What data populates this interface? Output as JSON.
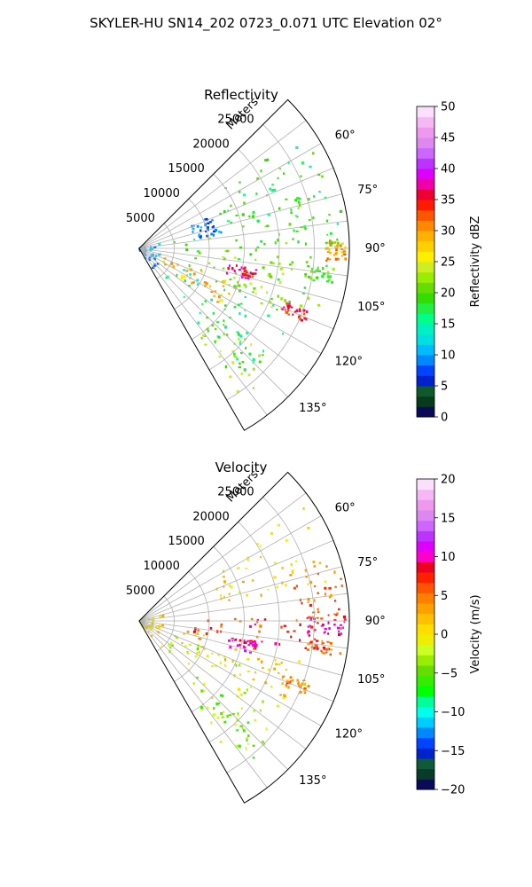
{
  "figure": {
    "suptitle": "SKYLER-HU  SN14_202  0723_0.071 UTC Elevation 02°"
  },
  "palettes": {
    "reflectivity": [
      "#0a0a5a",
      "#073b1a",
      "#0f5a2a",
      "#0022cc",
      "#0044ff",
      "#0088ff",
      "#00bbff",
      "#00e0e0",
      "#00f0c0",
      "#00ff88",
      "#22ee44",
      "#33dd00",
      "#66dd00",
      "#99ee00",
      "#ccee22",
      "#ffee00",
      "#ffd000",
      "#ffb000",
      "#ff8800",
      "#ff5500",
      "#ff1a00",
      "#ee0033",
      "#ee00aa",
      "#dd00ff",
      "#bb33ff",
      "#cc66ff",
      "#dd88ee",
      "#ee99ee",
      "#f4b8f4",
      "#fbe0fb"
    ],
    "velocity": [
      "#0a0a5a",
      "#0a3a2a",
      "#0f5a3a",
      "#0022cc",
      "#0044ff",
      "#0088ff",
      "#00ccff",
      "#00ffee",
      "#00ff99",
      "#00ff00",
      "#33ee00",
      "#66dd00",
      "#99ee00",
      "#ccff22",
      "#eeee00",
      "#ffdd00",
      "#ffc000",
      "#ffa000",
      "#ff8000",
      "#ff5500",
      "#ff2000",
      "#ee0022",
      "#ff00cc",
      "#dd00ff",
      "#bb33ff",
      "#cc66ff",
      "#dd88ee",
      "#ee99ee",
      "#f4b8f4",
      "#fbe0fb"
    ]
  },
  "chart_data": [
    {
      "type": "polar-sector",
      "title": "Reflectivity",
      "r_label": "Meters",
      "r_ticks": [
        5000,
        10000,
        15000,
        20000,
        25000
      ],
      "r_tick_labels": [
        "5000",
        "10000",
        "15000",
        "20000",
        "25000"
      ],
      "rlim": [
        0,
        30000
      ],
      "azimuth_range_deg": [
        45,
        150
      ],
      "azimuth_grid_deg": [
        45,
        52.5,
        60,
        67.5,
        75,
        82.5,
        90,
        97.5,
        105,
        112.5,
        120,
        127.5,
        135,
        142.5,
        150
      ],
      "azimuth_tick_labels": [
        "60°",
        "75°",
        "90°",
        "105°",
        "120°",
        "135°"
      ],
      "colorbar": {
        "label": "Reflectivity dBZ",
        "range": [
          0,
          50
        ],
        "ticks": [
          0,
          5,
          10,
          15,
          20,
          25,
          30,
          35,
          40,
          45,
          50
        ],
        "tick_labels": [
          "0",
          "5",
          "10",
          "15",
          "20",
          "25",
          "30",
          "35",
          "40",
          "45",
          "50"
        ],
        "palette": "reflectivity"
      },
      "echo_regions": [
        {
          "az": [
            80,
            112
          ],
          "r": [
            5000,
            27000
          ],
          "value": 20
        },
        {
          "az": [
            95,
            115
          ],
          "r": [
            12000,
            22000
          ],
          "value": 22
        },
        {
          "az": [
            112,
            142
          ],
          "r": [
            4000,
            24000
          ],
          "value": 17
        },
        {
          "az": [
            130,
            146
          ],
          "r": [
            15000,
            26000
          ],
          "value": 22
        },
        {
          "az": [
            72,
            90
          ],
          "r": [
            22000,
            29500
          ],
          "value": 18
        },
        {
          "az": [
            88,
            94
          ],
          "r": [
            26500,
            29500
          ],
          "value": 30
        },
        {
          "az": [
            96,
            100
          ],
          "r": [
            24000,
            28000
          ],
          "value": 20
        },
        {
          "az": [
            110,
            114
          ],
          "r": [
            22000,
            26000
          ],
          "value": 35
        },
        {
          "az": [
            110,
            125
          ],
          "r": [
            3000,
            15000
          ],
          "value": 28
        },
        {
          "az": [
            55,
            80
          ],
          "r": [
            12000,
            28500
          ],
          "value": 18
        },
        {
          "az": [
            75,
            150
          ],
          "r": [
            0,
            3500
          ],
          "value": 10
        },
        {
          "az": [
            66,
            80
          ],
          "r": [
            8000,
            12000
          ],
          "value": 8
        },
        {
          "az": [
            100,
            106
          ],
          "r": [
            13000,
            17000
          ],
          "value": 36
        }
      ]
    },
    {
      "type": "polar-sector",
      "title": "Velocity",
      "r_label": "Meters",
      "r_ticks": [
        5000,
        10000,
        15000,
        20000,
        25000
      ],
      "r_tick_labels": [
        "5000",
        "10000",
        "15000",
        "20000",
        "25000"
      ],
      "rlim": [
        0,
        30000
      ],
      "azimuth_range_deg": [
        45,
        150
      ],
      "azimuth_grid_deg": [
        45,
        52.5,
        60,
        67.5,
        75,
        82.5,
        90,
        97.5,
        105,
        112.5,
        120,
        127.5,
        135,
        142.5,
        150
      ],
      "azimuth_tick_labels": [
        "60°",
        "75°",
        "90°",
        "105°",
        "120°",
        "135°"
      ],
      "colorbar": {
        "label": "Velocity (m/s)",
        "range": [
          -20,
          20
        ],
        "ticks": [
          -20,
          -15,
          -10,
          -5,
          0,
          5,
          10,
          15,
          20
        ],
        "tick_labels": [
          "−20",
          "−15",
          "−10",
          "−5",
          "0",
          "5",
          "10",
          "15",
          "20"
        ],
        "palette": "velocity"
      },
      "echo_regions": [
        {
          "az": [
            88,
            102
          ],
          "r": [
            8000,
            29500
          ],
          "value": 7
        },
        {
          "az": [
            102,
            118
          ],
          "r": [
            6000,
            24000
          ],
          "value": 2
        },
        {
          "az": [
            112,
            142
          ],
          "r": [
            4000,
            24000
          ],
          "value": -2
        },
        {
          "az": [
            130,
            146
          ],
          "r": [
            15000,
            26000
          ],
          "value": -4
        },
        {
          "az": [
            72,
            90
          ],
          "r": [
            22000,
            29500
          ],
          "value": 5
        },
        {
          "az": [
            88,
            94
          ],
          "r": [
            24000,
            29500
          ],
          "value": 10
        },
        {
          "az": [
            96,
            100
          ],
          "r": [
            24000,
            28000
          ],
          "value": 6
        },
        {
          "az": [
            110,
            114
          ],
          "r": [
            22000,
            26000
          ],
          "value": 4
        },
        {
          "az": [
            55,
            80
          ],
          "r": [
            12000,
            28500
          ],
          "value": 1
        },
        {
          "az": [
            75,
            150
          ],
          "r": [
            0,
            3500
          ],
          "value": 0
        },
        {
          "az": [
            100,
            106
          ],
          "r": [
            13000,
            17000
          ],
          "value": 9
        }
      ]
    }
  ]
}
